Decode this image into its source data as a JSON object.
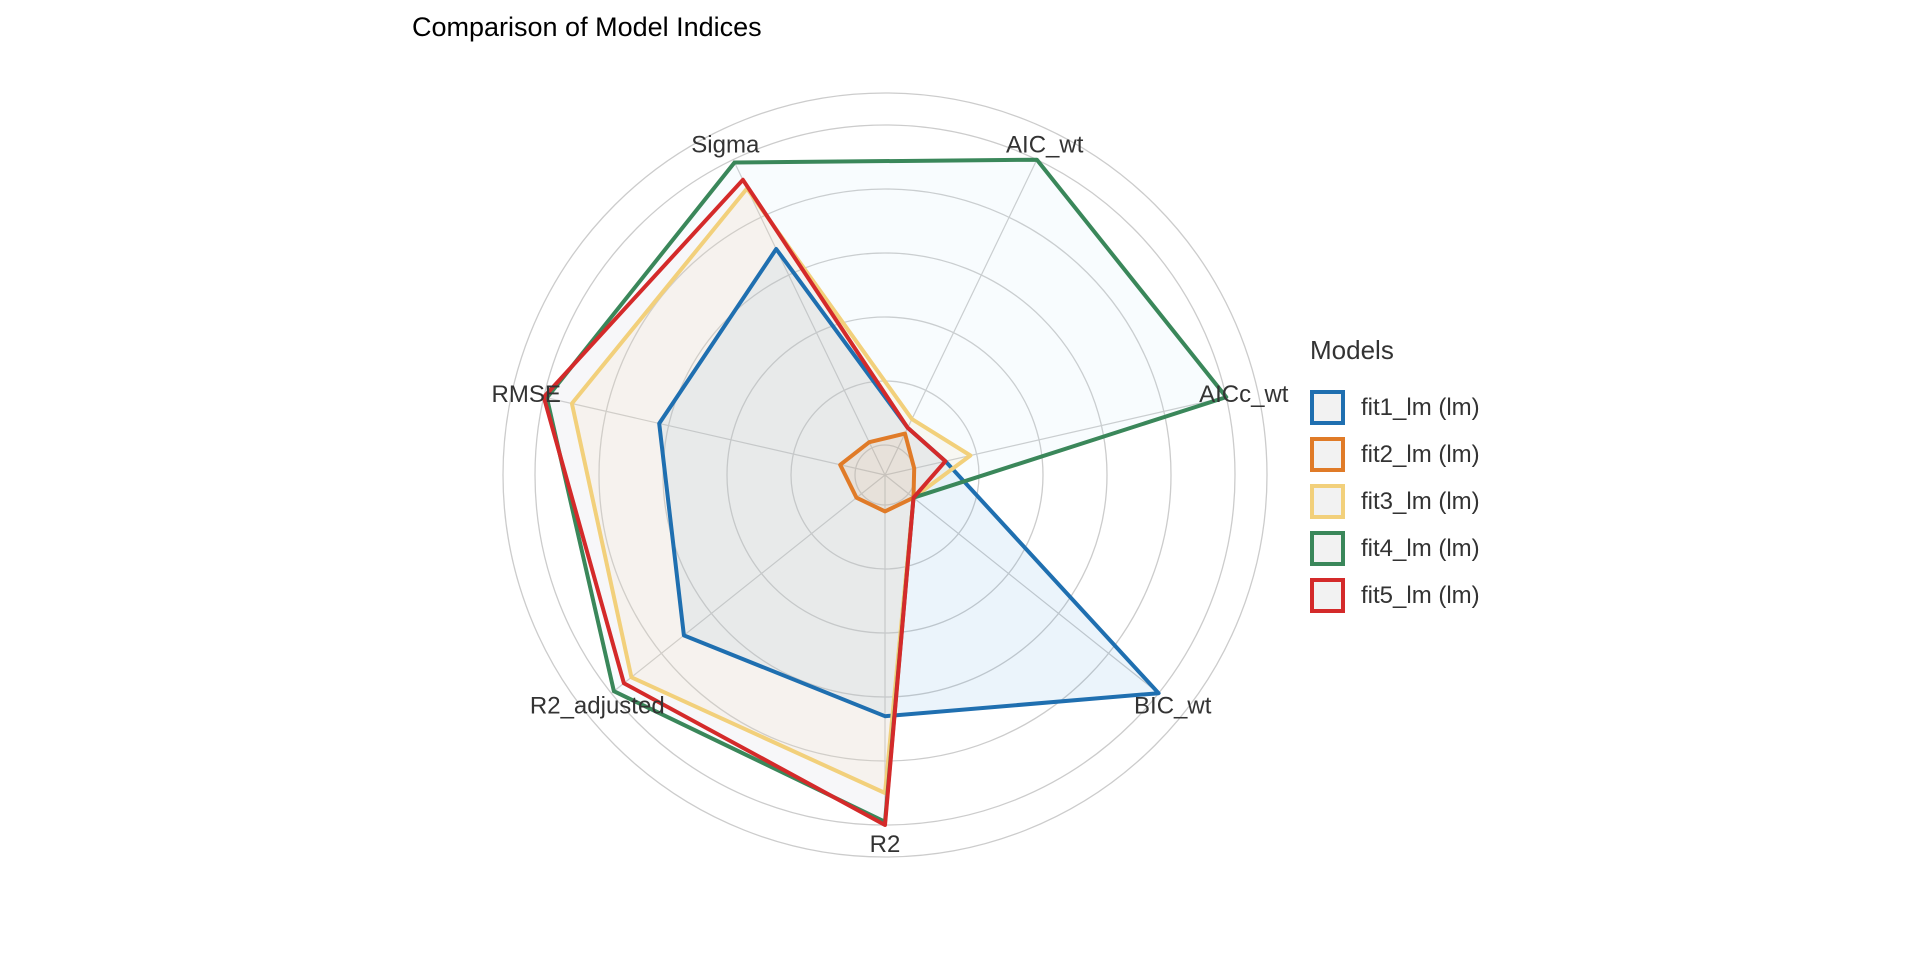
{
  "chart_data": {
    "type": "radar",
    "title": "Comparison of Model Indices",
    "axes": [
      "Sigma",
      "AIC_wt",
      "AICc_wt",
      "BIC_wt",
      "R2",
      "R2_adjusted",
      "RMSE"
    ],
    "rlim": [
      0,
      1
    ],
    "grid": true,
    "legend": {
      "title": "Models",
      "position": "right"
    },
    "series": [
      {
        "name": "fit1_lm (lm)",
        "color": "#1f6fb0",
        "fill": "#3a8fd9",
        "values": [
          0.69,
          0.07,
          0.1,
          1.0,
          0.66,
          0.71,
          0.63
        ]
      },
      {
        "name": "fit2_lm (lm)",
        "color": "#e07b28",
        "fill": "#e07b28",
        "values": [
          0.02,
          0.05,
          0.0,
          0.02,
          0.02,
          0.02,
          0.05
        ]
      },
      {
        "name": "fit3_lm (lm)",
        "color": "#f2d07b",
        "fill": "#f2d07b",
        "values": [
          0.9,
          0.1,
          0.18,
          0.02,
          0.9,
          0.92,
          0.91
        ]
      },
      {
        "name": "fit4_lm (lm)",
        "color": "#3a875a",
        "fill": "#bfe6f7",
        "values": [
          0.99,
          1.0,
          1.0,
          0.02,
          0.99,
          0.99,
          0.99
        ]
      },
      {
        "name": "fit5_lm (lm)",
        "color": "#d42a2a",
        "fill": "#f3cfcf",
        "values": [
          0.93,
          0.07,
          0.1,
          0.02,
          1.0,
          0.95,
          1.0
        ]
      }
    ]
  }
}
